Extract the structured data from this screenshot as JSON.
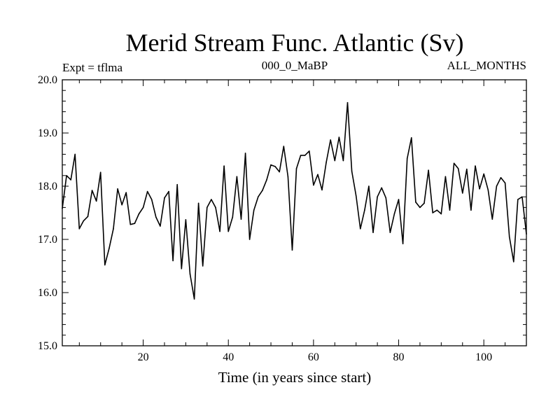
{
  "chart_data": {
    "type": "line",
    "title": "Merid Stream Func. Atlantic (Sv)",
    "subtitle_left": "Expt = tflma",
    "subtitle_center": "000_0_MaBP",
    "subtitle_right": "ALL_MONTHS",
    "xlabel": "Time (in years since start)",
    "ylabel": "",
    "xlim": [
      1,
      110
    ],
    "ylim": [
      15.0,
      20.0
    ],
    "x_ticks": [
      20,
      40,
      60,
      80,
      100
    ],
    "x_tick_labels": [
      "20",
      "40",
      "60",
      "80",
      "100"
    ],
    "y_ticks": [
      15.0,
      16.0,
      17.0,
      18.0,
      19.0,
      20.0
    ],
    "y_tick_labels": [
      "15.0",
      "16.0",
      "17.0",
      "18.0",
      "19.0",
      "20.0"
    ],
    "series": [
      {
        "name": "Merid Stream Func. Atlantic",
        "color": "#000000",
        "x": [
          1,
          2,
          3,
          4,
          5,
          6,
          7,
          8,
          9,
          10,
          11,
          12,
          13,
          14,
          15,
          16,
          17,
          18,
          19,
          20,
          21,
          22,
          23,
          24,
          25,
          26,
          27,
          28,
          29,
          30,
          31,
          32,
          33,
          34,
          35,
          36,
          37,
          38,
          39,
          40,
          41,
          42,
          43,
          44,
          45,
          46,
          47,
          48,
          49,
          50,
          51,
          52,
          53,
          54,
          55,
          56,
          57,
          58,
          59,
          60,
          61,
          62,
          63,
          64,
          65,
          66,
          67,
          68,
          69,
          70,
          71,
          72,
          73,
          74,
          75,
          76,
          77,
          78,
          79,
          80,
          81,
          82,
          83,
          84,
          85,
          86,
          87,
          88,
          89,
          90,
          91,
          92,
          93,
          94,
          95,
          96,
          97,
          98,
          99,
          100,
          101,
          102,
          103,
          104,
          105,
          106,
          107,
          108,
          109,
          110
        ],
        "values": [
          17.58,
          18.2,
          18.12,
          18.6,
          17.2,
          17.35,
          17.43,
          17.92,
          17.72,
          18.26,
          16.52,
          16.83,
          17.2,
          17.95,
          17.65,
          17.88,
          17.28,
          17.3,
          17.48,
          17.6,
          17.9,
          17.75,
          17.42,
          17.25,
          17.78,
          17.9,
          16.6,
          18.03,
          16.45,
          17.37,
          16.35,
          15.88,
          17.68,
          16.5,
          17.6,
          17.75,
          17.6,
          17.15,
          18.38,
          17.15,
          17.42,
          18.18,
          17.38,
          18.62,
          17.0,
          17.55,
          17.8,
          17.92,
          18.12,
          18.4,
          18.37,
          18.27,
          18.75,
          18.18,
          16.8,
          18.33,
          18.58,
          18.58,
          18.66,
          18.02,
          18.22,
          17.93,
          18.45,
          18.87,
          18.48,
          18.92,
          18.48,
          19.57,
          18.28,
          17.82,
          17.2,
          17.55,
          18.0,
          17.13,
          17.8,
          17.97,
          17.78,
          17.13,
          17.48,
          17.75,
          16.92,
          18.52,
          18.91,
          17.7,
          17.6,
          17.68,
          18.3,
          17.5,
          17.55,
          17.48,
          18.18,
          17.55,
          18.43,
          18.33,
          17.87,
          18.32,
          17.55,
          18.38,
          17.95,
          18.23,
          17.93,
          17.38,
          18.0,
          18.16,
          18.06,
          17.05,
          16.58,
          17.75,
          17.8,
          17.1
        ]
      }
    ]
  }
}
